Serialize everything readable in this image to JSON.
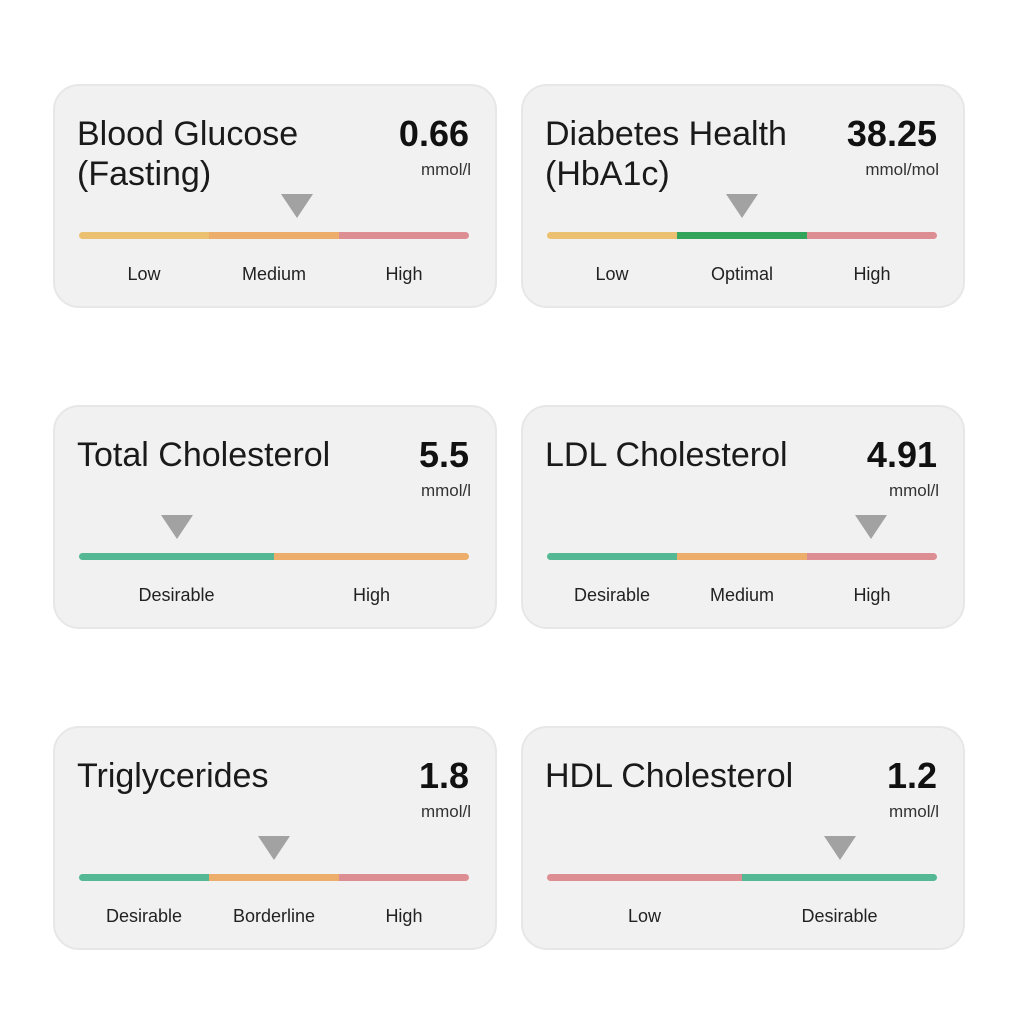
{
  "colors": {
    "yellow": "#ecc071",
    "orange": "#ecae6a",
    "red": "#dd8e93",
    "green_teal": "#53b893",
    "green_dark": "#32a35a",
    "marker": "#a2a2a2"
  },
  "cards": [
    {
      "title": "Blood Glucose\n(Fasting)",
      "value": "0.66",
      "unit": "mmol/l",
      "marker_position": 0.56,
      "segments": [
        {
          "label": "Low",
          "color": "#ecc071"
        },
        {
          "label": "Medium",
          "color": "#ecae6a"
        },
        {
          "label": "High",
          "color": "#dd8e93"
        }
      ]
    },
    {
      "title": "Diabetes Health\n(HbA1c)",
      "value": "38.25",
      "unit": "mmol/mol",
      "marker_position": 0.5,
      "segments": [
        {
          "label": "Low",
          "color": "#ecc071"
        },
        {
          "label": "Optimal",
          "color": "#32a35a"
        },
        {
          "label": "High",
          "color": "#dd8e93"
        }
      ]
    },
    {
      "title": "Total Cholesterol",
      "value": "5.5",
      "unit": "mmol/l",
      "marker_position": 0.25,
      "segments": [
        {
          "label": "Desirable",
          "color": "#53b893"
        },
        {
          "label": "High",
          "color": "#ecae6a"
        }
      ]
    },
    {
      "title": "LDL Cholesterol",
      "value": "4.91",
      "unit": "mmol/l",
      "marker_position": 0.83,
      "segments": [
        {
          "label": "Desirable",
          "color": "#53b893"
        },
        {
          "label": "Medium",
          "color": "#ecae6a"
        },
        {
          "label": "High",
          "color": "#dd8e93"
        }
      ]
    },
    {
      "title": "Triglycerides",
      "value": "1.8",
      "unit": "mmol/l",
      "marker_position": 0.5,
      "segments": [
        {
          "label": "Desirable",
          "color": "#53b893"
        },
        {
          "label": "Borderline",
          "color": "#ecae6a"
        },
        {
          "label": "High",
          "color": "#dd8e93"
        }
      ]
    },
    {
      "title": "HDL Cholesterol",
      "value": "1.2",
      "unit": "mmol/l",
      "marker_position": 0.75,
      "segments": [
        {
          "label": "Low",
          "color": "#dd8e93"
        },
        {
          "label": "Desirable",
          "color": "#53b893"
        }
      ]
    }
  ]
}
